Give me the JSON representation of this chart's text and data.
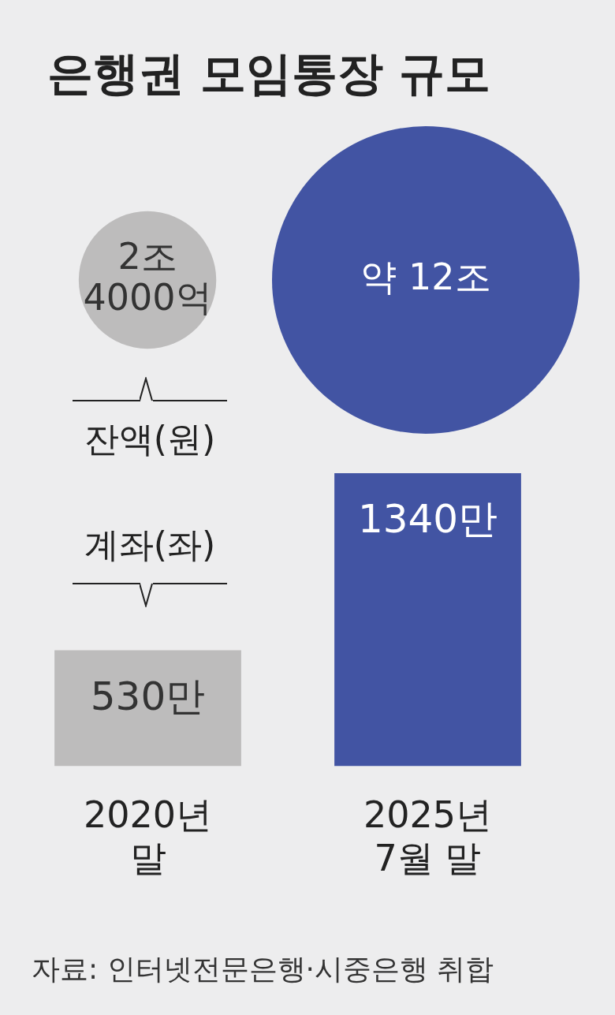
{
  "chart_data": [
    {
      "type": "other",
      "title": "은행권 모임통장 규모",
      "ylabel": "잔액(원)",
      "values": [
        2.4,
        12
      ],
      "colors": [
        "#bdbcbc",
        "#4254a3"
      ],
      "value_labels": [
        "2조 4000억",
        "약 12조"
      ]
    },
    {
      "type": "bar",
      "ylabel": "계좌(좌)",
      "categories": [
        "2020년 말",
        "2025년 7월 말"
      ],
      "values": [
        530,
        1340
      ],
      "colors": [
        "#bdbcbc",
        "#4254a3"
      ],
      "value_labels": [
        "530만",
        "1340만"
      ],
      "annotations": [
        "자료: 인터넷전문은행·시중은행 취합"
      ]
    }
  ]
}
